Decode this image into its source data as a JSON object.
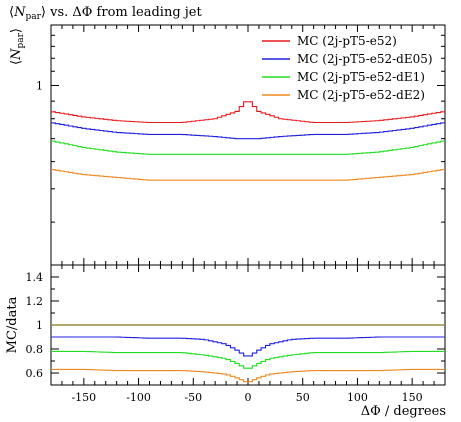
{
  "chart_data": [
    {
      "type": "line",
      "title": "⟨N_par⟩ vs. ΔΦ from leading jet",
      "xlabel": "",
      "ylabel": "⟨N_par⟩",
      "xlim": [
        -180,
        180
      ],
      "ylim": [
        0.3,
        1.5
      ],
      "yscale": "log",
      "yticks": [
        "1"
      ],
      "legend": "top-right",
      "x": [
        -180,
        -150,
        -120,
        -90,
        -60,
        -30,
        -10,
        0,
        10,
        30,
        60,
        90,
        120,
        150,
        180
      ],
      "series": [
        {
          "name": "MC (2j-pT5-e52)",
          "color": "#e8191c",
          "values": [
            0.84,
            0.81,
            0.79,
            0.78,
            0.78,
            0.8,
            0.84,
            0.91,
            0.84,
            0.8,
            0.78,
            0.78,
            0.79,
            0.81,
            0.84
          ]
        },
        {
          "name": "MC (2j-pT5-e52-dE05)",
          "color": "#2020e0",
          "values": [
            0.78,
            0.75,
            0.73,
            0.72,
            0.72,
            0.71,
            0.7,
            0.7,
            0.7,
            0.71,
            0.72,
            0.72,
            0.73,
            0.75,
            0.78
          ]
        },
        {
          "name": "MC (2j-pT5-e52-dE1)",
          "color": "#22dd22",
          "values": [
            0.69,
            0.66,
            0.64,
            0.63,
            0.63,
            0.63,
            0.63,
            0.63,
            0.63,
            0.63,
            0.63,
            0.63,
            0.64,
            0.66,
            0.69
          ]
        },
        {
          "name": "MC (2j-pT5-e52-dE2)",
          "color": "#f08820",
          "values": [
            0.57,
            0.55,
            0.54,
            0.53,
            0.53,
            0.53,
            0.53,
            0.53,
            0.53,
            0.53,
            0.53,
            0.53,
            0.54,
            0.55,
            0.57
          ]
        }
      ]
    },
    {
      "type": "line",
      "xlabel": "ΔΦ / degrees",
      "ylabel": "MC/data",
      "xlim": [
        -180,
        180
      ],
      "ylim": [
        0.5,
        1.5
      ],
      "xticks": [
        "-150",
        "-100",
        "-50",
        "0",
        "50",
        "100",
        "150"
      ],
      "yticks": [
        "0.6",
        "0.8",
        "1",
        "1.2",
        "1.4"
      ],
      "reference_line": {
        "value": 1.0,
        "color": "#9a8a3a"
      },
      "x": [
        -180,
        -150,
        -120,
        -90,
        -60,
        -40,
        -20,
        -10,
        0,
        10,
        20,
        40,
        60,
        90,
        120,
        150,
        180
      ],
      "series": [
        {
          "name": "MC (2j-pT5-e52)",
          "color": "#e8191c",
          "values": [
            1.0,
            1.0,
            1.0,
            1.0,
            1.0,
            1.0,
            1.0,
            1.0,
            1.0,
            1.0,
            1.0,
            1.0,
            1.0,
            1.0,
            1.0,
            1.0,
            1.0
          ]
        },
        {
          "name": "MC (2j-pT5-e52-dE05)",
          "color": "#2020e0",
          "values": [
            0.9,
            0.9,
            0.9,
            0.89,
            0.89,
            0.88,
            0.84,
            0.79,
            0.73,
            0.79,
            0.84,
            0.88,
            0.89,
            0.89,
            0.9,
            0.9,
            0.9
          ]
        },
        {
          "name": "MC (2j-pT5-e52-dE1)",
          "color": "#22dd22",
          "values": [
            0.78,
            0.78,
            0.77,
            0.77,
            0.77,
            0.75,
            0.72,
            0.68,
            0.63,
            0.68,
            0.72,
            0.75,
            0.77,
            0.77,
            0.77,
            0.78,
            0.78
          ]
        },
        {
          "name": "MC (2j-pT5-e52-dE2)",
          "color": "#f08820",
          "values": [
            0.63,
            0.63,
            0.62,
            0.62,
            0.62,
            0.61,
            0.59,
            0.56,
            0.52,
            0.56,
            0.59,
            0.61,
            0.62,
            0.62,
            0.62,
            0.63,
            0.63
          ]
        }
      ]
    }
  ]
}
